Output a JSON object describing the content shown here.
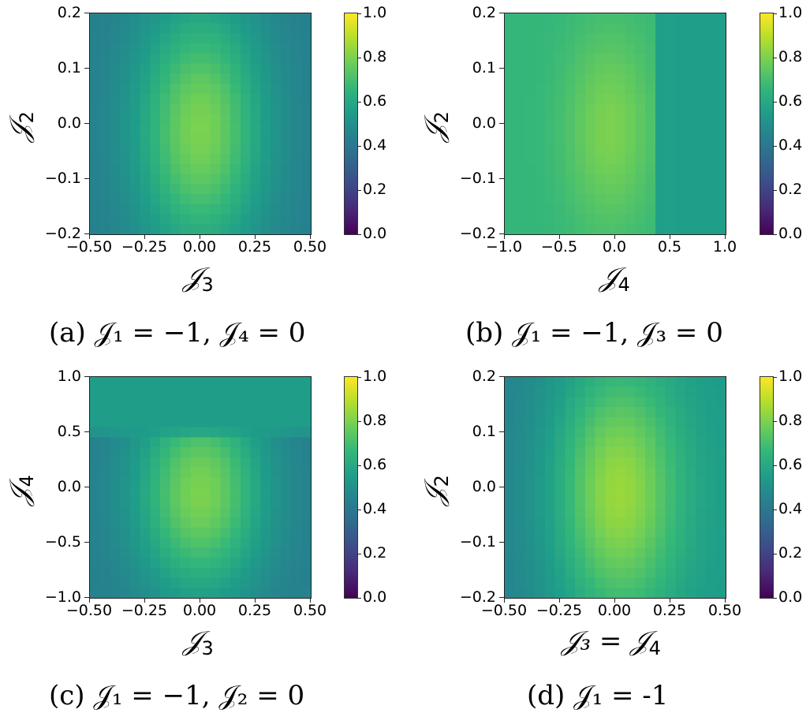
{
  "figure": {
    "colormap": "viridis",
    "colorbar": {
      "min": 0.0,
      "max": 1.0,
      "ticks": [
        "0.0",
        "0.2",
        "0.4",
        "0.6",
        "0.8",
        "1.0"
      ]
    }
  },
  "panels": [
    {
      "id": "a",
      "caption": {
        "label": "(a)",
        "text": "𝒥₁ = −1, 𝒥₄ = 0"
      },
      "xlabel": {
        "sym": "𝒥",
        "sub": "3"
      },
      "ylabel": {
        "sym": "𝒥",
        "sub": "2"
      },
      "xticks": [
        "−0.50",
        "−0.25",
        "0.00",
        "0.25",
        "0.50"
      ],
      "yticks": [
        "0.2",
        "0.1",
        "0.0",
        "−0.1",
        "−0.2"
      ]
    },
    {
      "id": "b",
      "caption": {
        "label": "(b)",
        "text": "𝒥₁ = −1, 𝒥₃ = 0"
      },
      "xlabel": {
        "sym": "𝒥",
        "sub": "4"
      },
      "ylabel": {
        "sym": "𝒥",
        "sub": "2"
      },
      "xticks": [
        "−1.0",
        "−0.5",
        "0.0",
        "0.5",
        "1.0"
      ],
      "yticks": [
        "0.2",
        "0.1",
        "0.0",
        "−0.1",
        "−0.2"
      ]
    },
    {
      "id": "c",
      "caption": {
        "label": "(c)",
        "text": "𝒥₁ = −1, 𝒥₂ = 0"
      },
      "xlabel": {
        "sym": "𝒥",
        "sub": "3"
      },
      "ylabel": {
        "sym": "𝒥",
        "sub": "4"
      },
      "xticks": [
        "−0.50",
        "−0.25",
        "0.00",
        "0.25",
        "0.50"
      ],
      "yticks": [
        "1.0",
        "0.5",
        "0.0",
        "−0.5",
        "−1.0"
      ]
    },
    {
      "id": "d",
      "caption": {
        "label": "(d)",
        "text": "𝒥₁ = -1"
      },
      "xlabel": {
        "sym": "𝒥₃ = 𝒥",
        "sub": "4"
      },
      "ylabel": {
        "sym": "𝒥",
        "sub": "2"
      },
      "xticks": [
        "−0.50",
        "−0.25",
        "0.00",
        "0.25",
        "0.50"
      ],
      "yticks": [
        "0.2",
        "0.1",
        "0.0",
        "−0.1",
        "−0.2"
      ]
    }
  ],
  "chart_data": [
    {
      "type": "heatmap",
      "title": "(a) J1 = -1, J4 = 0",
      "xlabel": "J3",
      "ylabel": "J2",
      "xlim": [
        -0.5,
        0.5
      ],
      "ylim": [
        -0.2,
        0.2
      ],
      "xticks": [
        -0.5,
        -0.25,
        0.0,
        0.25,
        0.5
      ],
      "yticks": [
        -0.2,
        -0.1,
        0.0,
        0.1,
        0.2
      ],
      "grid": [
        22,
        22
      ],
      "colorbar": {
        "range": [
          0.0,
          1.0
        ],
        "ticks": [
          0.0,
          0.2,
          0.4,
          0.6,
          0.8,
          1.0
        ]
      },
      "value_range_observed": [
        0.43,
        0.8
      ],
      "peak": {
        "x": 0.0,
        "y": 0.0,
        "value": 0.8
      },
      "model": {
        "base": 0.43,
        "amp": 0.37,
        "cx": 0.0,
        "cy": -0.01,
        "sx": 0.2,
        "sy": 0.16,
        "edge_x_min": 0.43,
        "edge_x_max": 0.43
      }
    },
    {
      "type": "heatmap",
      "title": "(b) J1 = -1, J3 = 0",
      "xlabel": "J4",
      "ylabel": "J2",
      "xlim": [
        -1.0,
        1.0
      ],
      "ylim": [
        -0.2,
        0.2
      ],
      "xticks": [
        -1.0,
        -0.5,
        0.0,
        0.5,
        1.0
      ],
      "yticks": [
        -0.2,
        -0.1,
        0.0,
        0.1,
        0.2
      ],
      "grid": [
        22,
        22
      ],
      "colorbar": {
        "range": [
          0.0,
          1.0
        ],
        "ticks": [
          0.0,
          0.2,
          0.4,
          0.6,
          0.8,
          1.0
        ]
      },
      "value_range_observed": [
        0.55,
        0.8
      ],
      "peak": {
        "x": -0.05,
        "y": 0.0,
        "value": 0.8
      },
      "notes": "left plateau ~0.66 for J4 < 0.35, step down to ~0.55 for J4 > 0.4",
      "model": {
        "base": 0.66,
        "amp": 0.14,
        "cx": -0.05,
        "cy": -0.01,
        "sx": 0.28,
        "sy": 0.13,
        "step_x": 0.37,
        "right_level": 0.56
      }
    },
    {
      "type": "heatmap",
      "title": "(c) J1 = -1, J2 = 0",
      "xlabel": "J3",
      "ylabel": "J4",
      "xlim": [
        -0.5,
        0.5
      ],
      "ylim": [
        -1.0,
        1.0
      ],
      "xticks": [
        -0.5,
        -0.25,
        0.0,
        0.25,
        0.5
      ],
      "yticks": [
        -1.0,
        -0.5,
        0.0,
        0.5,
        1.0
      ],
      "grid": [
        22,
        22
      ],
      "colorbar": {
        "range": [
          0.0,
          1.0
        ],
        "ticks": [
          0.0,
          0.2,
          0.4,
          0.6,
          0.8,
          1.0
        ]
      },
      "value_range_observed": [
        0.42,
        0.8
      ],
      "peak": {
        "x": 0.0,
        "y": 0.0,
        "value": 0.8
      },
      "notes": "upper band J4 > 0.45 roughly uniform ~0.55",
      "model": {
        "base": 0.43,
        "amp": 0.37,
        "cx": 0.0,
        "cy": -0.05,
        "sx": 0.2,
        "sy": 0.65,
        "top_y": 0.42,
        "top_level": 0.55
      }
    },
    {
      "type": "heatmap",
      "title": "(d) J1 = -1",
      "xlabel": "J3 = J4",
      "ylabel": "J2",
      "xlim": [
        -0.5,
        0.5
      ],
      "ylim": [
        -0.2,
        0.2
      ],
      "xticks": [
        -0.5,
        -0.25,
        0.0,
        0.25,
        0.5
      ],
      "yticks": [
        -0.2,
        -0.1,
        0.0,
        0.1,
        0.2
      ],
      "grid": [
        22,
        22
      ],
      "colorbar": {
        "range": [
          0.0,
          1.0
        ],
        "ticks": [
          0.0,
          0.2,
          0.4,
          0.6,
          0.8,
          1.0
        ]
      },
      "value_range_observed": [
        0.45,
        0.8
      ],
      "peak": {
        "x": 0.0,
        "y": 0.0,
        "value": 0.8
      },
      "notes": "asymmetric: left edge ~0.45, right edge ~0.53",
      "model": {
        "base": 0.45,
        "amp": 0.35,
        "cx": 0.01,
        "cy": -0.01,
        "sx": 0.2,
        "sy": 0.17,
        "edge_x_min": 0.45,
        "edge_x_max": 0.54
      }
    }
  ]
}
